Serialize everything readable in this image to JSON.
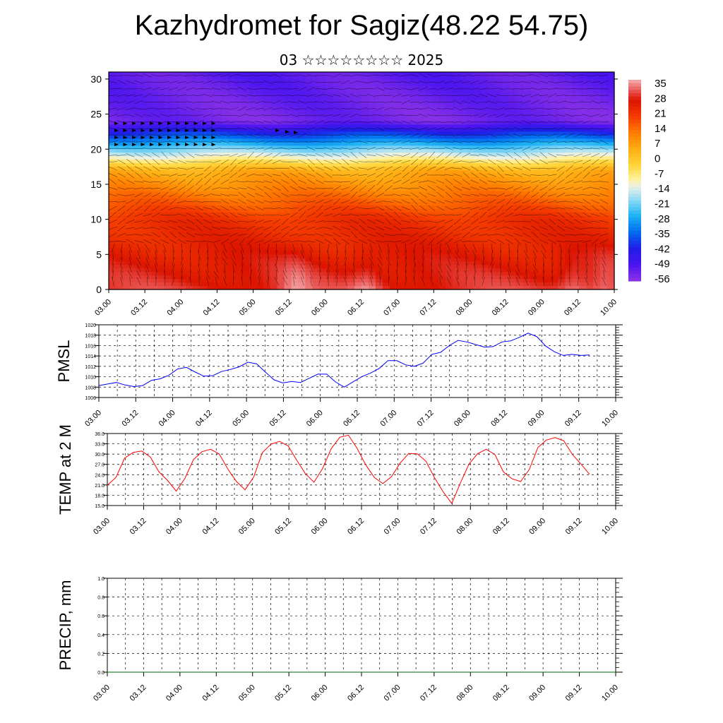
{
  "title": "Kazhydromet for Sagiz(48.22 54.75)",
  "subtitle": "03 ☆☆☆☆☆☆☆☆ 2025",
  "colors": {
    "pmsl_line": "#0000ff",
    "temp_line": "#ff0000",
    "precip_line": "#006400"
  },
  "chart_data": [
    {
      "type": "heatmap",
      "name": "vertical-cross-section",
      "title": "",
      "x_tick_labels": [
        "03.00",
        "03.12",
        "04.00",
        "04.12",
        "05.00",
        "05.12",
        "06.00",
        "06.12",
        "07.00",
        "07.12",
        "08.00",
        "08.12",
        "09.00",
        "09.12",
        "10.00"
      ],
      "y_ticks": [
        0,
        5,
        10,
        15,
        20,
        25,
        30
      ],
      "ylim": [
        0,
        31
      ],
      "colorbar_labels": [
        "35",
        "28",
        "21",
        "14",
        "7",
        "0",
        "-7",
        "-14",
        "-21",
        "-28",
        "-35",
        "-42",
        "-49",
        "-56"
      ],
      "colorbar_range": [
        -60,
        38
      ],
      "annotation": "wind barbs overlaid"
    },
    {
      "type": "line",
      "name": "pmsl",
      "ylabel": "PMSL",
      "ylim": [
        1006,
        1020
      ],
      "y_ticks": [
        1006,
        1008,
        1010,
        1012,
        1014,
        1016,
        1018,
        1020
      ],
      "x_tick_labels": [
        "03.00",
        "03.12",
        "04.00",
        "04.12",
        "05.00",
        "05.12",
        "06.00",
        "06.12",
        "07.00",
        "07.12",
        "08.00",
        "08.12",
        "09.00",
        "09.12",
        "10.00"
      ],
      "values": [
        1008.3,
        1008.6,
        1008.9,
        1008.4,
        1008.1,
        1008.3,
        1009.3,
        1009.6,
        1010.3,
        1011.5,
        1011.8,
        1010.9,
        1010.1,
        1010.2,
        1011.0,
        1011.4,
        1011.9,
        1012.8,
        1012.5,
        1010.9,
        1009.4,
        1008.8,
        1009.1,
        1008.9,
        1009.7,
        1010.5,
        1010.5,
        1009.0,
        1008.0,
        1009.0,
        1010.0,
        1010.7,
        1011.6,
        1013.1,
        1013.1,
        1012.3,
        1012.0,
        1012.6,
        1014.3,
        1014.7,
        1016.0,
        1017.0,
        1016.7,
        1016.2,
        1015.7,
        1015.8,
        1016.7,
        1016.9,
        1017.6,
        1018.4,
        1017.7,
        1015.9,
        1014.8,
        1014.1,
        1014.3,
        1014.1,
        1014.2
      ]
    },
    {
      "type": "line",
      "name": "temp-2m",
      "ylabel": "TEMP at 2 M",
      "ylim": [
        15,
        36
      ],
      "y_ticks": [
        "15.0",
        "18.0",
        "21.0",
        "24.0",
        "27.0",
        "30.0",
        "33.0",
        "36.0"
      ],
      "x_tick_labels": [
        "03.00",
        "03.12",
        "04.00",
        "04.12",
        "05.00",
        "05.12",
        "06.00",
        "06.12",
        "07.00",
        "07.12",
        "08.00",
        "08.12",
        "09.00",
        "09.12",
        "10.00"
      ],
      "values": [
        20.9,
        23.2,
        28.8,
        30.5,
        30.9,
        29.1,
        24.8,
        22.3,
        19.2,
        22.9,
        28.4,
        30.7,
        31.4,
        30.0,
        25.6,
        22.0,
        19.6,
        23.3,
        30.4,
        32.9,
        33.7,
        32.4,
        28.2,
        24.3,
        21.8,
        25.8,
        31.6,
        34.9,
        35.5,
        31.7,
        26.9,
        23.2,
        21.4,
        23.4,
        27.4,
        30.2,
        30.1,
        27.9,
        23.1,
        19.0,
        15.6,
        21.6,
        27.1,
        30.1,
        31.4,
        29.9,
        24.8,
        22.8,
        22.0,
        25.5,
        31.9,
        34.1,
        34.8,
        33.9,
        29.9,
        27.1,
        24.1
      ]
    },
    {
      "type": "line",
      "name": "precip",
      "ylabel": "PRECIP, mm",
      "ylim": [
        0,
        1
      ],
      "y_ticks": [
        "0.0",
        "0.2",
        "0.4",
        "0.6",
        "0.8",
        "1.0"
      ],
      "x_tick_labels": [
        "03.00",
        "03.12",
        "04.00",
        "04.12",
        "05.00",
        "05.12",
        "06.00",
        "06.12",
        "07.00",
        "07.12",
        "08.00",
        "08.12",
        "09.00",
        "09.12",
        "10.00"
      ],
      "values": [
        0,
        0,
        0,
        0,
        0,
        0,
        0,
        0,
        0,
        0,
        0,
        0,
        0,
        0,
        0,
        0,
        0,
        0,
        0,
        0,
        0,
        0,
        0,
        0,
        0,
        0,
        0,
        0,
        0,
        0,
        0,
        0,
        0,
        0,
        0,
        0,
        0,
        0,
        0,
        0,
        0,
        0,
        0,
        0,
        0,
        0,
        0,
        0,
        0,
        0,
        0,
        0,
        0,
        0,
        0,
        0,
        0
      ]
    }
  ]
}
